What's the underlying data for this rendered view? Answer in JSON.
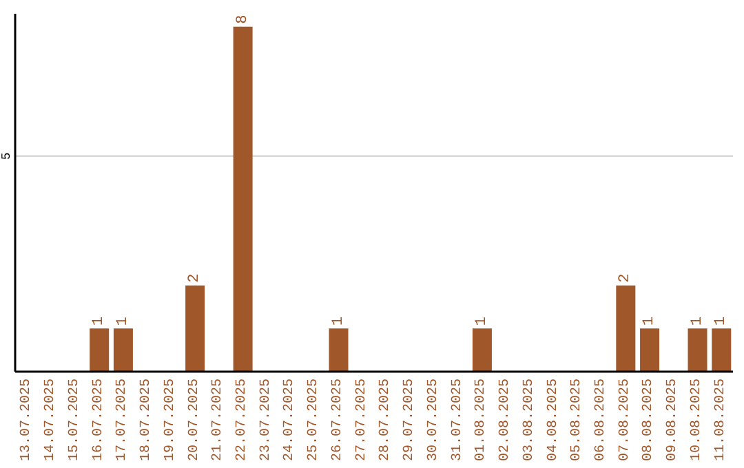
{
  "chart_data": {
    "type": "bar",
    "categories": [
      "13.07.2025",
      "14.07.2025",
      "15.07.2025",
      "16.07.2025",
      "17.07.2025",
      "18.07.2025",
      "19.07.2025",
      "20.07.2025",
      "21.07.2025",
      "22.07.2025",
      "23.07.2025",
      "24.07.2025",
      "25.07.2025",
      "26.07.2025",
      "27.07.2025",
      "28.07.2025",
      "29.07.2025",
      "30.07.2025",
      "31.07.2025",
      "01.08.2025",
      "02.08.2025",
      "03.08.2025",
      "04.08.2025",
      "05.08.2025",
      "06.08.2025",
      "07.08.2025",
      "08.08.2025",
      "09.08.2025",
      "10.08.2025",
      "11.08.2025"
    ],
    "values": [
      0,
      0,
      0,
      1,
      1,
      0,
      0,
      2,
      0,
      8,
      0,
      0,
      0,
      1,
      0,
      0,
      0,
      0,
      0,
      1,
      0,
      0,
      0,
      0,
      0,
      2,
      1,
      0,
      1,
      1
    ],
    "value_labels": [
      null,
      null,
      null,
      "1",
      "1",
      null,
      null,
      "2",
      null,
      "8",
      null,
      null,
      null,
      "1",
      null,
      null,
      null,
      null,
      null,
      "1",
      null,
      null,
      null,
      null,
      null,
      "2",
      "1",
      null,
      "1",
      "1"
    ],
    "color": "#a0572a",
    "ylim": [
      0,
      8.3
    ],
    "yticks": [
      5
    ],
    "grid": "y"
  }
}
